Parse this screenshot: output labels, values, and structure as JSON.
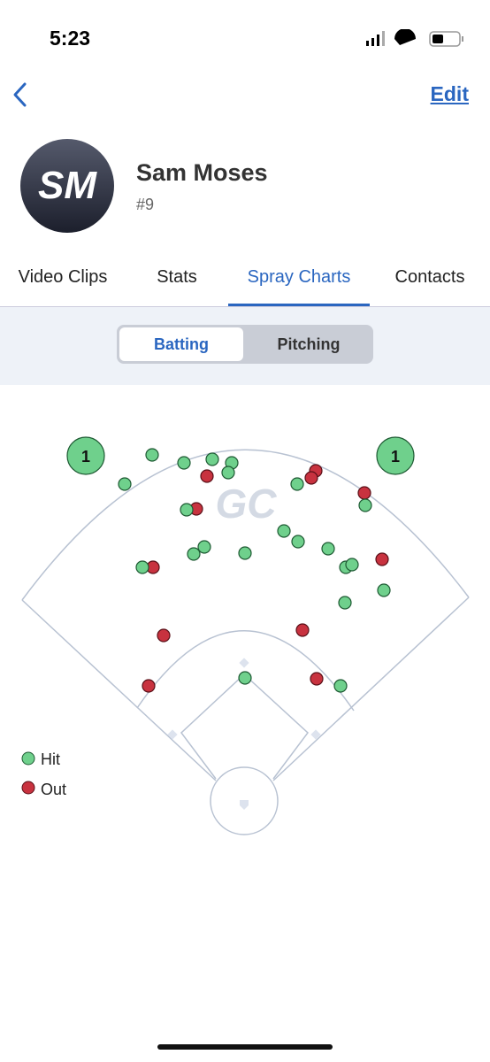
{
  "status_bar": {
    "time": "5:23"
  },
  "nav": {
    "edit": "Edit"
  },
  "player": {
    "initials": "SM",
    "name": "Sam Moses",
    "number": "#9"
  },
  "tabs": [
    "Video Clips",
    "Stats",
    "Spray Charts",
    "Contacts"
  ],
  "segments": [
    "Batting",
    "Pitching"
  ],
  "field": {
    "badges": [
      "1",
      "1"
    ],
    "logo": "GC"
  },
  "legend": [
    "Hit",
    "Out"
  ]
}
